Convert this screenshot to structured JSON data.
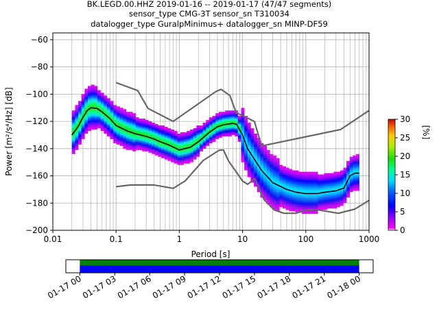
{
  "title": {
    "line1": "BK.LEGD.00.HHZ   2019-01-16 -- 2019-01-17  (47/47 segments)",
    "line2": "sensor_type CMG-3T sensor_sn T310034",
    "line3": "datalogger_type GuralpMinimus+ datalogger_sn MINP-DF59"
  },
  "colors": {
    "noise_models": "#666666",
    "mean_curve": "#000000",
    "grid": "#b0b0b0",
    "coverage_top": "#008000",
    "coverage_bottom": "#0000ff"
  },
  "chart_data": [
    {
      "type": "heatmap",
      "xlabel": "Period [s]",
      "ylabel_text": "Power [m²/s⁴/Hz] [dB]",
      "xscale": "log",
      "xlim": [
        0.01,
        1000
      ],
      "ylim": [
        -200,
        -55
      ],
      "grid": true,
      "x_ticks": [
        0.01,
        0.1,
        1,
        10,
        100,
        1000
      ],
      "x_tick_labels": [
        "0.01",
        "0.1",
        "1",
        "10",
        "100",
        "1000"
      ],
      "y_ticks": [
        -200,
        -180,
        -160,
        -140,
        -120,
        -100,
        -80,
        -60
      ],
      "y_tick_labels": [
        "−200",
        "−180",
        "−160",
        "−140",
        "−120",
        "−100",
        "−80",
        "−60"
      ],
      "colorbar": {
        "label": "[%]",
        "range": [
          0,
          30
        ],
        "ticks": [
          0,
          5,
          10,
          15,
          20,
          25,
          30
        ],
        "tick_labels": [
          "0",
          "5",
          "10",
          "15",
          "20",
          "25",
          "30"
        ]
      },
      "series": [
        {
          "name": "",
          "role": "new-high-noise-model",
          "x": [
            0.1,
            0.22,
            0.32,
            0.8,
            3.8,
            4.6,
            6.3,
            7.9,
            15.4,
            20,
            354.8,
            1000
          ],
          "y": [
            -91.5,
            -97.4,
            -110.5,
            -120.0,
            -98.0,
            -96.5,
            -101.0,
            -113.5,
            -120.0,
            -138.0,
            -126.0,
            -112.0
          ]
        },
        {
          "name": "",
          "role": "new-low-noise-model",
          "x": [
            0.1,
            0.17,
            0.4,
            0.8,
            1.24,
            2.4,
            4.3,
            5.0,
            6.0,
            10.0,
            12.0,
            15.6,
            21.9,
            31.6,
            45.0,
            70.0,
            101.0,
            154.0,
            328.0,
            600.0,
            1000.0
          ],
          "y": [
            -168.0,
            -166.7,
            -166.7,
            -169.2,
            -163.7,
            -148.6,
            -141.1,
            -141.1,
            -149.0,
            -163.8,
            -166.2,
            -162.1,
            -177.5,
            -185.0,
            -187.5,
            -187.5,
            -185.0,
            -185.0,
            -187.5,
            -184.4,
            -178.0
          ]
        },
        {
          "name": "",
          "role": "mean",
          "x": [
            0.02,
            0.025,
            0.03,
            0.035,
            0.04,
            0.05,
            0.06,
            0.08,
            0.1,
            0.15,
            0.2,
            0.3,
            0.4,
            0.5,
            0.7,
            1.0,
            1.5,
            2.0,
            3.0,
            4.0,
            5.0,
            7.0,
            8.0,
            10.0,
            12.0,
            15.0,
            20.0,
            30.0,
            50.0,
            70.0,
            100.0,
            150.0,
            200.0,
            300.0,
            400.0,
            500.0,
            600.0,
            700.0
          ],
          "y": [
            -130,
            -124,
            -117,
            -112,
            -110,
            -110.5,
            -113,
            -118,
            -123,
            -127,
            -129,
            -131,
            -133,
            -135,
            -137.5,
            -141,
            -139,
            -135,
            -128,
            -124,
            -122.5,
            -121.5,
            -122,
            -130,
            -140,
            -147,
            -156,
            -165,
            -170,
            -172,
            -173,
            -173,
            -172,
            -171,
            -169,
            -160,
            -158,
            -158
          ]
        }
      ]
    },
    {
      "type": "bar",
      "role": "data-coverage",
      "x_tick_labels": [
        "01-17 00",
        "01-17 03",
        "01-17 06",
        "01-17 09",
        "01-17 12",
        "01-17 15",
        "01-17 18",
        "01-17 21",
        "01-18 00"
      ],
      "x_tick_hours": [
        0,
        3,
        6,
        9,
        12,
        15,
        18,
        21,
        24
      ],
      "xlim_hours": [
        -1.2,
        25.2
      ],
      "intervals_hours": [
        [
          0,
          24
        ]
      ]
    }
  ]
}
